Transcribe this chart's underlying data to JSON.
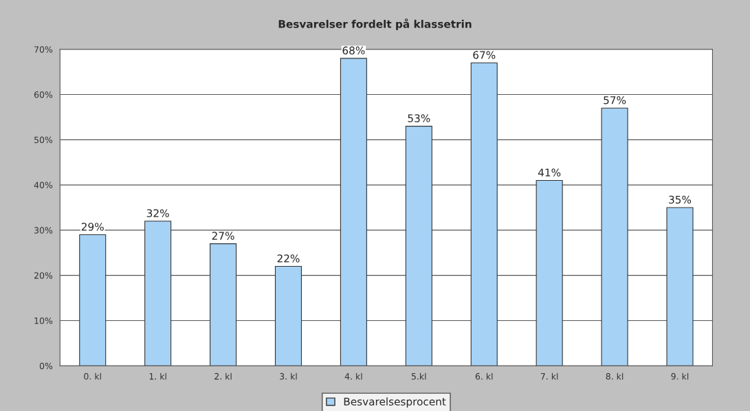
{
  "chart_data": {
    "type": "bar",
    "title": "Besvarelser fordelt på klassetrin",
    "categories": [
      "0. kl",
      "1. kl",
      "2. kl",
      "3. kl",
      "4. kl",
      "5.kl",
      "6. kl",
      "7. kl",
      "8. kl",
      "9. kl"
    ],
    "series": [
      {
        "name": "Besvarelsesprocent",
        "color": "#a6d2f5",
        "values": [
          29,
          32,
          27,
          22,
          68,
          53,
          67,
          41,
          57,
          35
        ],
        "value_labels": [
          "29%",
          "32%",
          "27%",
          "22%",
          "68%",
          "53%",
          "67%",
          "41%",
          "57%",
          "35%"
        ]
      }
    ],
    "ylim": [
      0,
      70
    ],
    "yticks": [
      {
        "value": 0,
        "label": "0%"
      },
      {
        "value": 10,
        "label": "10%"
      },
      {
        "value": 20,
        "label": "20%"
      },
      {
        "value": 30,
        "label": "30%"
      },
      {
        "value": 40,
        "label": "40%"
      },
      {
        "value": 50,
        "label": "50%"
      },
      {
        "value": 60,
        "label": "60%"
      },
      {
        "value": 70,
        "label": "70%"
      }
    ],
    "grid": "y",
    "legend": "bottom"
  }
}
